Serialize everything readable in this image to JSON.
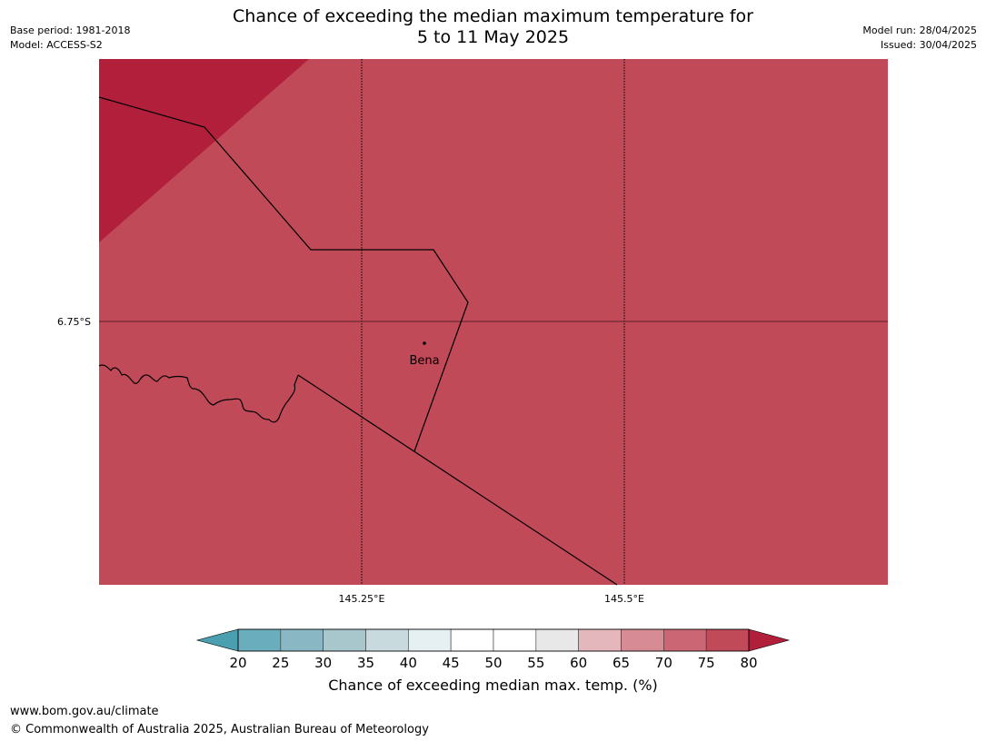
{
  "header": {
    "title_line1": "Chance of exceeding the median maximum temperature for",
    "title_line2": "5 to 11 May 2025",
    "base_period": "Base period: 1981-2018",
    "model": "Model: ACCESS-S2",
    "model_run": "Model run: 28/04/2025",
    "issued": "Issued: 30/04/2025"
  },
  "map": {
    "background_color": "#c04a57",
    "high_zone_color": "#b21f3b",
    "latitude_labels": [
      "6.75°S"
    ],
    "longitude_labels": [
      "145.25°E",
      "145.5°E"
    ],
    "places": [
      {
        "name": "Bena"
      }
    ]
  },
  "colorbar": {
    "ticks": [
      "20",
      "25",
      "30",
      "35",
      "40",
      "45",
      "50",
      "55",
      "60",
      "65",
      "70",
      "75",
      "80"
    ],
    "low_extend_color": "#4aa0b0",
    "high_extend_color": "#b21f3b",
    "bin_colors": [
      "#6aadbc",
      "#89b7c3",
      "#a8c7cd",
      "#c8dadd",
      "#e6eff1",
      "#ffffff",
      "#ffffff",
      "#e8e8e8",
      "#e3b7bc",
      "#d78b95",
      "#cb6774",
      "#c04a57"
    ],
    "label": "Chance of exceeding median max. temp. (%)"
  },
  "footer": {
    "website": "www.bom.gov.au/climate",
    "copyright": "© Commonwealth of Australia 2025, Australian Bureau of Meteorology"
  }
}
